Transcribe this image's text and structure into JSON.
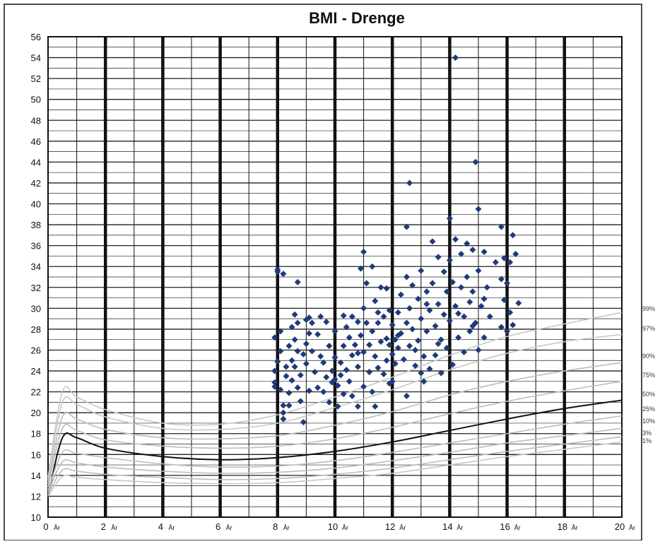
{
  "chart_data": {
    "type": "scatter",
    "title": "BMI - Drenge",
    "xlabel": "",
    "ylabel": "",
    "xlim": [
      0,
      20
    ],
    "ylim": [
      10,
      56
    ],
    "x_ticks": [
      {
        "value": 0,
        "label": "0",
        "unit": "År"
      },
      {
        "value": 2,
        "label": "2",
        "unit": "År"
      },
      {
        "value": 4,
        "label": "4",
        "unit": "År"
      },
      {
        "value": 6,
        "label": "6",
        "unit": "År"
      },
      {
        "value": 8,
        "label": "8",
        "unit": "År"
      },
      {
        "value": 10,
        "label": "10",
        "unit": "År"
      },
      {
        "value": 12,
        "label": "12",
        "unit": "År"
      },
      {
        "value": 14,
        "label": "14",
        "unit": "År"
      },
      {
        "value": 16,
        "label": "16",
        "unit": "År"
      },
      {
        "value": 18,
        "label": "18",
        "unit": "År"
      },
      {
        "value": 20,
        "label": "20",
        "unit": "År"
      }
    ],
    "y_ticks": [
      10,
      12,
      14,
      16,
      18,
      20,
      22,
      24,
      26,
      28,
      30,
      32,
      34,
      36,
      38,
      40,
      42,
      44,
      46,
      48,
      50,
      52,
      54,
      56
    ],
    "grid": true,
    "point_color": "#1f3a7a",
    "percentile_curves": [
      {
        "name": "99%",
        "color": "#c8c8c8",
        "points": [
          [
            0,
            13.8
          ],
          [
            0.5,
            22.0
          ],
          [
            1,
            21.5
          ],
          [
            2,
            20.3
          ],
          [
            4,
            19.0
          ],
          [
            6,
            18.9
          ],
          [
            8,
            19.8
          ],
          [
            10,
            21.5
          ],
          [
            12,
            23.4
          ],
          [
            14,
            25.5
          ],
          [
            16,
            27.3
          ],
          [
            18,
            28.5
          ],
          [
            20,
            29.6
          ]
        ]
      },
      {
        "name": "97%",
        "color": "#c8c8c8",
        "points": [
          [
            0,
            13.5
          ],
          [
            0.5,
            21.0
          ],
          [
            1,
            20.8
          ],
          [
            2,
            19.6
          ],
          [
            4,
            18.5
          ],
          [
            6,
            18.4
          ],
          [
            8,
            19.0
          ],
          [
            10,
            20.5
          ],
          [
            12,
            22.2
          ],
          [
            14,
            24.1
          ],
          [
            16,
            25.7
          ],
          [
            18,
            26.8
          ],
          [
            20,
            27.5
          ]
        ]
      },
      {
        "name": "90%",
        "color": "#bdbdbd",
        "points": [
          [
            0,
            13.2
          ],
          [
            0.5,
            19.6
          ],
          [
            1,
            19.4
          ],
          [
            2,
            18.4
          ],
          [
            4,
            17.6
          ],
          [
            6,
            17.5
          ],
          [
            8,
            17.8
          ],
          [
            10,
            18.8
          ],
          [
            12,
            20.1
          ],
          [
            14,
            21.7
          ],
          [
            16,
            23.0
          ],
          [
            18,
            24.0
          ],
          [
            20,
            24.8
          ]
        ]
      },
      {
        "name": "75%",
        "color": "#bdbdbd",
        "points": [
          [
            0,
            12.9
          ],
          [
            0.5,
            18.5
          ],
          [
            1,
            18.3
          ],
          [
            2,
            17.4
          ],
          [
            4,
            16.8
          ],
          [
            6,
            16.6
          ],
          [
            8,
            16.8
          ],
          [
            10,
            17.5
          ],
          [
            12,
            18.6
          ],
          [
            14,
            19.9
          ],
          [
            16,
            21.1
          ],
          [
            18,
            22.1
          ],
          [
            20,
            23.0
          ]
        ]
      },
      {
        "name": "50%",
        "color": "#111111",
        "points": [
          [
            0,
            12.0
          ],
          [
            0.5,
            17.6
          ],
          [
            1,
            17.6
          ],
          [
            2,
            16.6
          ],
          [
            4,
            15.8
          ],
          [
            6,
            15.5
          ],
          [
            8,
            15.7
          ],
          [
            10,
            16.3
          ],
          [
            12,
            17.2
          ],
          [
            14,
            18.3
          ],
          [
            16,
            19.4
          ],
          [
            18,
            20.4
          ],
          [
            20,
            21.2
          ]
        ]
      },
      {
        "name": "25%",
        "color": "#bdbdbd",
        "points": [
          [
            0,
            12.6
          ],
          [
            0.5,
            16.2
          ],
          [
            1,
            16.1
          ],
          [
            2,
            15.7
          ],
          [
            4,
            15.1
          ],
          [
            6,
            14.8
          ],
          [
            8,
            14.9
          ],
          [
            10,
            15.4
          ],
          [
            12,
            16.2
          ],
          [
            14,
            17.1
          ],
          [
            16,
            18.0
          ],
          [
            18,
            18.9
          ],
          [
            20,
            19.7
          ]
        ]
      },
      {
        "name": "10%",
        "color": "#bdbdbd",
        "points": [
          [
            0,
            12.4
          ],
          [
            0.5,
            15.3
          ],
          [
            1,
            15.2
          ],
          [
            2,
            14.8
          ],
          [
            4,
            14.4
          ],
          [
            6,
            14.2
          ],
          [
            8,
            14.3
          ],
          [
            10,
            14.7
          ],
          [
            12,
            15.4
          ],
          [
            14,
            16.2
          ],
          [
            16,
            17.1
          ],
          [
            18,
            17.8
          ],
          [
            20,
            18.5
          ]
        ]
      },
      {
        "name": "3%",
        "color": "#bdbdbd",
        "points": [
          [
            0,
            12.2
          ],
          [
            0.5,
            14.5
          ],
          [
            1,
            14.4
          ],
          [
            2,
            14.1
          ],
          [
            4,
            13.8
          ],
          [
            6,
            13.6
          ],
          [
            8,
            13.7
          ],
          [
            10,
            14.1
          ],
          [
            12,
            14.7
          ],
          [
            14,
            15.5
          ],
          [
            16,
            16.3
          ],
          [
            18,
            17.0
          ],
          [
            20,
            17.7
          ]
        ]
      },
      {
        "name": "1%",
        "color": "#c8c8c8",
        "points": [
          [
            0,
            12.0
          ],
          [
            0.5,
            13.9
          ],
          [
            1,
            13.8
          ],
          [
            2,
            13.6
          ],
          [
            4,
            13.3
          ],
          [
            6,
            13.2
          ],
          [
            8,
            13.3
          ],
          [
            10,
            13.7
          ],
          [
            12,
            14.2
          ],
          [
            14,
            15.0
          ],
          [
            16,
            15.8
          ],
          [
            18,
            16.5
          ],
          [
            20,
            17.2
          ]
        ]
      }
    ],
    "points": [
      [
        8.0,
        33.7
      ],
      [
        8.0,
        33.5
      ],
      [
        8.2,
        33.3
      ],
      [
        7.9,
        27.2
      ],
      [
        7.9,
        24.0
      ],
      [
        7.9,
        22.9
      ],
      [
        7.9,
        22.5
      ],
      [
        8.0,
        24.9
      ],
      [
        8.1,
        27.8
      ],
      [
        8.1,
        25.9
      ],
      [
        8.1,
        22.2
      ],
      [
        8.2,
        20.7
      ],
      [
        8.2,
        20.0
      ],
      [
        8.2,
        19.4
      ],
      [
        8.3,
        24.4
      ],
      [
        8.3,
        23.5
      ],
      [
        8.4,
        26.4
      ],
      [
        8.4,
        21.9
      ],
      [
        8.4,
        20.7
      ],
      [
        8.5,
        28.2
      ],
      [
        8.5,
        25.0
      ],
      [
        8.5,
        23.1
      ],
      [
        8.6,
        29.4
      ],
      [
        8.6,
        27.0
      ],
      [
        8.6,
        24.4
      ],
      [
        8.7,
        32.5
      ],
      [
        8.7,
        28.6
      ],
      [
        8.7,
        25.9
      ],
      [
        8.7,
        22.4
      ],
      [
        8.8,
        23.6
      ],
      [
        8.8,
        21.1
      ],
      [
        8.9,
        19.1
      ],
      [
        9.0,
        28.9
      ],
      [
        9.0,
        26.6
      ],
      [
        9.0,
        24.7
      ],
      [
        9.1,
        29.1
      ],
      [
        9.1,
        27.6
      ],
      [
        9.1,
        22.1
      ],
      [
        9.2,
        25.9
      ],
      [
        9.3,
        23.9
      ],
      [
        9.4,
        27.5
      ],
      [
        9.4,
        22.4
      ],
      [
        9.5,
        25.4
      ],
      [
        9.6,
        22.0
      ],
      [
        9.6,
        24.8
      ],
      [
        9.7,
        28.7
      ],
      [
        9.7,
        23.4
      ],
      [
        9.8,
        26.4
      ],
      [
        9.8,
        21.0
      ],
      [
        9.9,
        24.0
      ],
      [
        9.9,
        22.9
      ],
      [
        10.0,
        27.8
      ],
      [
        10.0,
        25.3
      ],
      [
        10.0,
        23.2
      ],
      [
        10.1,
        22.6
      ],
      [
        10.1,
        20.6
      ],
      [
        10.2,
        24.8
      ],
      [
        10.2,
        23.6
      ],
      [
        10.3,
        29.3
      ],
      [
        10.3,
        26.4
      ],
      [
        10.4,
        28.2
      ],
      [
        10.4,
        24.1
      ],
      [
        10.5,
        27.2
      ],
      [
        10.5,
        23.0
      ],
      [
        10.6,
        29.2
      ],
      [
        10.6,
        25.5
      ],
      [
        10.6,
        21.6
      ],
      [
        10.7,
        26.5
      ],
      [
        10.8,
        28.7
      ],
      [
        10.8,
        24.4
      ],
      [
        10.8,
        20.6
      ],
      [
        10.9,
        33.8
      ],
      [
        10.9,
        27.4
      ],
      [
        11.0,
        35.4
      ],
      [
        11.0,
        30.0
      ],
      [
        11.0,
        25.8
      ],
      [
        11.0,
        22.5
      ],
      [
        11.1,
        32.4
      ],
      [
        11.1,
        28.6
      ],
      [
        11.2,
        26.5
      ],
      [
        11.2,
        23.9
      ],
      [
        11.3,
        34.0
      ],
      [
        11.3,
        27.8
      ],
      [
        11.3,
        22.0
      ],
      [
        11.4,
        30.7
      ],
      [
        11.4,
        25.4
      ],
      [
        11.4,
        20.6
      ],
      [
        11.5,
        28.6
      ],
      [
        11.5,
        24.3
      ],
      [
        11.6,
        32.0
      ],
      [
        11.6,
        26.8
      ],
      [
        11.7,
        29.2
      ],
      [
        11.7,
        23.7
      ],
      [
        11.8,
        31.9
      ],
      [
        11.8,
        27.1
      ],
      [
        11.8,
        25.0
      ],
      [
        11.9,
        29.8
      ],
      [
        11.9,
        26.5
      ],
      [
        12.0,
        28.4
      ],
      [
        12.0,
        25.6
      ],
      [
        12.0,
        23.0
      ],
      [
        12.1,
        27.0
      ],
      [
        12.1,
        24.7
      ],
      [
        12.2,
        29.6
      ],
      [
        12.2,
        26.2
      ],
      [
        12.3,
        31.3
      ],
      [
        12.3,
        27.6
      ],
      [
        12.4,
        25.1
      ],
      [
        12.5,
        33.0
      ],
      [
        12.5,
        28.6
      ],
      [
        12.5,
        21.6
      ],
      [
        12.6,
        42.0
      ],
      [
        12.6,
        30.0
      ],
      [
        12.6,
        26.4
      ],
      [
        12.7,
        32.2
      ],
      [
        12.7,
        28.0
      ],
      [
        12.8,
        24.5
      ],
      [
        12.9,
        30.9
      ],
      [
        12.9,
        26.9
      ],
      [
        13.0,
        33.6
      ],
      [
        13.0,
        29.0
      ],
      [
        13.1,
        25.4
      ],
      [
        13.1,
        23.0
      ],
      [
        13.2,
        31.6
      ],
      [
        13.2,
        27.8
      ],
      [
        13.3,
        29.8
      ],
      [
        13.3,
        24.2
      ],
      [
        13.4,
        36.4
      ],
      [
        13.4,
        32.4
      ],
      [
        13.5,
        28.3
      ],
      [
        13.5,
        25.5
      ],
      [
        13.6,
        34.9
      ],
      [
        13.6,
        30.4
      ],
      [
        13.7,
        27.0
      ],
      [
        13.7,
        23.8
      ],
      [
        13.8,
        33.5
      ],
      [
        13.8,
        29.4
      ],
      [
        13.9,
        31.6
      ],
      [
        13.9,
        26.2
      ],
      [
        14.0,
        38.6
      ],
      [
        14.0,
        34.6
      ],
      [
        14.0,
        28.8
      ],
      [
        14.1,
        32.5
      ],
      [
        14.1,
        24.6
      ],
      [
        14.2,
        36.6
      ],
      [
        14.2,
        30.2
      ],
      [
        14.2,
        54.0
      ],
      [
        14.3,
        27.2
      ],
      [
        14.4,
        35.2
      ],
      [
        14.4,
        32.0
      ],
      [
        14.5,
        29.2
      ],
      [
        14.5,
        25.8
      ],
      [
        14.6,
        36.2
      ],
      [
        14.6,
        33.0
      ],
      [
        14.7,
        30.6
      ],
      [
        14.7,
        27.8
      ],
      [
        14.8,
        35.6
      ],
      [
        14.8,
        31.6
      ],
      [
        14.9,
        44.0
      ],
      [
        14.9,
        28.6
      ],
      [
        15.0,
        39.5
      ],
      [
        15.0,
        33.6
      ],
      [
        15.0,
        26.0
      ],
      [
        15.1,
        30.2
      ],
      [
        15.2,
        35.4
      ],
      [
        15.2,
        27.2
      ],
      [
        15.3,
        32.0
      ],
      [
        15.4,
        29.2
      ],
      [
        15.8,
        37.8
      ],
      [
        15.8,
        32.8
      ],
      [
        15.8,
        28.2
      ],
      [
        15.9,
        34.8
      ],
      [
        15.9,
        30.8
      ],
      [
        16.0,
        32.4
      ],
      [
        16.1,
        34.4
      ],
      [
        16.1,
        29.6
      ],
      [
        16.2,
        37.0
      ],
      [
        16.2,
        28.4
      ],
      [
        16.3,
        35.2
      ],
      [
        16.4,
        30.5
      ],
      [
        12.5,
        37.8
      ],
      [
        9.2,
        28.6
      ],
      [
        10.3,
        21.8
      ],
      [
        11.9,
        22.8
      ],
      [
        13.0,
        23.8
      ],
      [
        12.2,
        27.4
      ],
      [
        11.5,
        29.6
      ],
      [
        10.8,
        25.7
      ],
      [
        8.9,
        25.6
      ],
      [
        9.5,
        29.2
      ],
      [
        12.8,
        26.0
      ],
      [
        13.6,
        26.6
      ],
      [
        14.3,
        29.5
      ],
      [
        15.2,
        30.9
      ],
      [
        15.6,
        34.4
      ],
      [
        16.0,
        27.8
      ],
      [
        14.8,
        28.3
      ],
      [
        13.2,
        30.4
      ]
    ],
    "legend": "curve labels at right edge"
  }
}
